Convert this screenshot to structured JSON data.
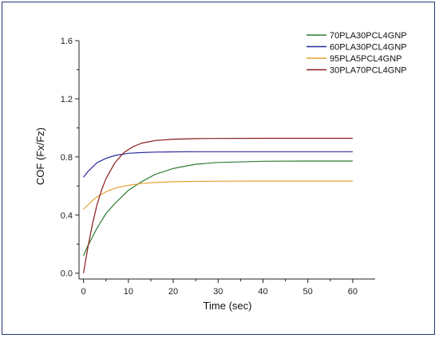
{
  "chart_data": {
    "type": "line",
    "xlabel": "Time (sec)",
    "ylabel": "COF (Fx/Fz)",
    "xlim": [
      -1,
      65
    ],
    "ylim": [
      -0.04,
      1.6
    ],
    "xticks": [
      "0",
      "10",
      "20",
      "30",
      "40",
      "50",
      "60"
    ],
    "yticks": [
      "0.0",
      "0.4",
      "0.8",
      "1.2",
      "1.6"
    ],
    "legend_position": "top-right",
    "grid": false,
    "series": [
      {
        "name": "70PLA30PCL4GNP",
        "color": "#2e7d32",
        "x": [
          0,
          1,
          2,
          3,
          5,
          7,
          10,
          13,
          16,
          20,
          25,
          30,
          40,
          50,
          60
        ],
        "y": [
          0.12,
          0.19,
          0.25,
          0.31,
          0.41,
          0.48,
          0.57,
          0.63,
          0.68,
          0.72,
          0.75,
          0.762,
          0.77,
          0.772,
          0.772
        ]
      },
      {
        "name": "60PLA30PCL4GNP",
        "color": "#2b2ba0",
        "x": [
          0,
          1,
          2,
          3,
          5,
          7,
          10,
          13,
          16,
          20,
          25,
          30,
          40,
          50,
          60
        ],
        "y": [
          0.66,
          0.7,
          0.73,
          0.76,
          0.79,
          0.81,
          0.825,
          0.83,
          0.833,
          0.835,
          0.836,
          0.836,
          0.836,
          0.836,
          0.836
        ]
      },
      {
        "name": "95PLA5PCL4GNP",
        "color": "#e5a030",
        "x": [
          0,
          1,
          2,
          3,
          5,
          7,
          10,
          13,
          16,
          20,
          25,
          30,
          40,
          50,
          60
        ],
        "y": [
          0.44,
          0.47,
          0.5,
          0.525,
          0.56,
          0.585,
          0.605,
          0.617,
          0.624,
          0.629,
          0.632,
          0.633,
          0.634,
          0.634,
          0.634
        ]
      },
      {
        "name": "30PLA70PCL4GNP",
        "color": "#8b1a1a",
        "x": [
          0,
          1,
          2,
          3,
          4,
          5,
          7,
          9,
          11,
          13,
          16,
          20,
          25,
          30,
          40,
          50,
          60
        ],
        "y": [
          0.0,
          0.18,
          0.34,
          0.47,
          0.57,
          0.65,
          0.76,
          0.83,
          0.87,
          0.895,
          0.913,
          0.922,
          0.926,
          0.927,
          0.928,
          0.928,
          0.928
        ]
      }
    ]
  }
}
